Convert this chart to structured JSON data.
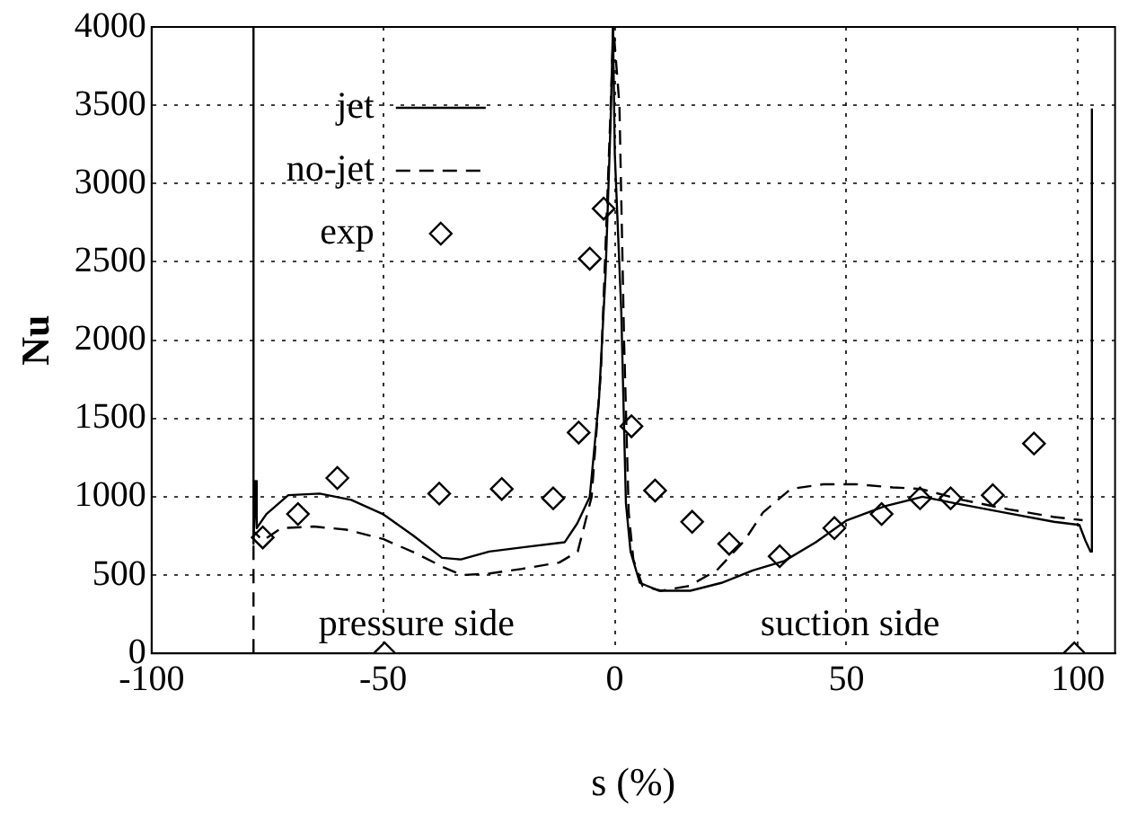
{
  "chart_data": {
    "type": "line",
    "xlabel": "s (%)",
    "ylabel": "Nu",
    "xlim": [
      -100,
      108
    ],
    "xticks": [
      -100,
      -50,
      0,
      50,
      100
    ],
    "ylim": [
      0,
      4000
    ],
    "yticks": [
      0,
      500,
      1000,
      1500,
      2000,
      2500,
      3000,
      3500,
      4000
    ],
    "grid": true,
    "legend": "top left",
    "annotations": [
      "pressure side",
      "suction side"
    ],
    "series": [
      {
        "name": "jet",
        "color": "#000000",
        "line_style": "solid",
        "marker": "none",
        "x": [
          -78,
          -78,
          -77.6,
          -77.3,
          -75.2,
          -70.5,
          -63.7,
          -56.9,
          -50.1,
          -43.4,
          -37.3,
          -33.2,
          -27.1,
          -19,
          -10.8,
          -8.1,
          -5.4,
          -3.4,
          -2,
          -0.9,
          -0.4,
          0,
          1.4,
          2.4,
          3.4,
          5.4,
          9.5,
          16.3,
          23,
          29.8,
          36.6,
          43.4,
          50.1,
          58.3,
          66.4,
          73.2,
          84,
          94.8,
          100.3,
          101.6,
          102.7,
          103
        ],
        "values": [
          4000,
          700,
          1100,
          800,
          890,
          1010,
          1020,
          980,
          890,
          750,
          610,
          600,
          650,
          680,
          710,
          830,
          1000,
          1630,
          2420,
          3400,
          4000,
          3190,
          2180,
          960,
          650,
          450,
          400,
          400,
          450,
          530,
          590,
          710,
          850,
          940,
          1000,
          960,
          900,
          840,
          820,
          720,
          650,
          3480
        ]
      },
      {
        "name": "no-jet",
        "color": "#000000",
        "line_style": "dashed",
        "marker": "none",
        "x": [
          -78,
          -78,
          -76,
          -72,
          -65,
          -58,
          -50,
          -43,
          -37,
          -33,
          -27,
          -20,
          -12,
          -8,
          -5,
          -3,
          -1,
          -0.3,
          1,
          2,
          3,
          4,
          6,
          10,
          16,
          22,
          28,
          32,
          38,
          45,
          52,
          60,
          66,
          75,
          85,
          95,
          101
        ],
        "values": [
          0,
          780,
          720,
          800,
          810,
          790,
          730,
          640,
          550,
          500,
          510,
          540,
          580,
          650,
          1000,
          1800,
          3400,
          4000,
          3500,
          2000,
          900,
          600,
          430,
          400,
          430,
          530,
          720,
          900,
          1050,
          1080,
          1080,
          1060,
          1050,
          980,
          920,
          870,
          850
        ]
      },
      {
        "name": "exp",
        "type": "scatter",
        "color": "#000000",
        "marker": "diamond",
        "x": [
          -76,
          -68.4,
          -59.9,
          -49.7,
          -37.9,
          -24.4,
          -13.3,
          -7.8,
          -5.4,
          -2.4,
          3.6,
          8.7,
          16.7,
          24.7,
          35.6,
          47.4,
          57.6,
          65.9,
          72.5,
          81.6,
          90.5,
          99.2
        ],
        "values": [
          740,
          890,
          1120,
          0,
          1020,
          1050,
          990,
          1410,
          2520,
          2840,
          1450,
          1040,
          840,
          700,
          620,
          800,
          890,
          990,
          990,
          1010,
          1340,
          0
        ]
      }
    ]
  }
}
